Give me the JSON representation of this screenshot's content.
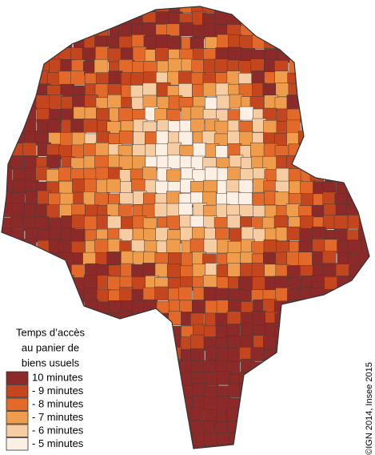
{
  "legend": {
    "title_lines": [
      "Temps d’accès",
      "au panier de",
      "biens usuels"
    ],
    "items": [
      {
        "label": "10 minutes",
        "color": "#8c2a2a"
      },
      {
        "label": "- 9 minutes",
        "color": "#c4461e"
      },
      {
        "label": "- 8 minutes",
        "color": "#e2692a"
      },
      {
        "label": "- 7 minutes",
        "color": "#ef9c4c"
      },
      {
        "label": "- 6 minutes",
        "color": "#f6cda2"
      },
      {
        "label": "- 5 minutes",
        "color": "#fcefe3"
      }
    ]
  },
  "credit": "©IGN 2014, Insee 2015"
}
